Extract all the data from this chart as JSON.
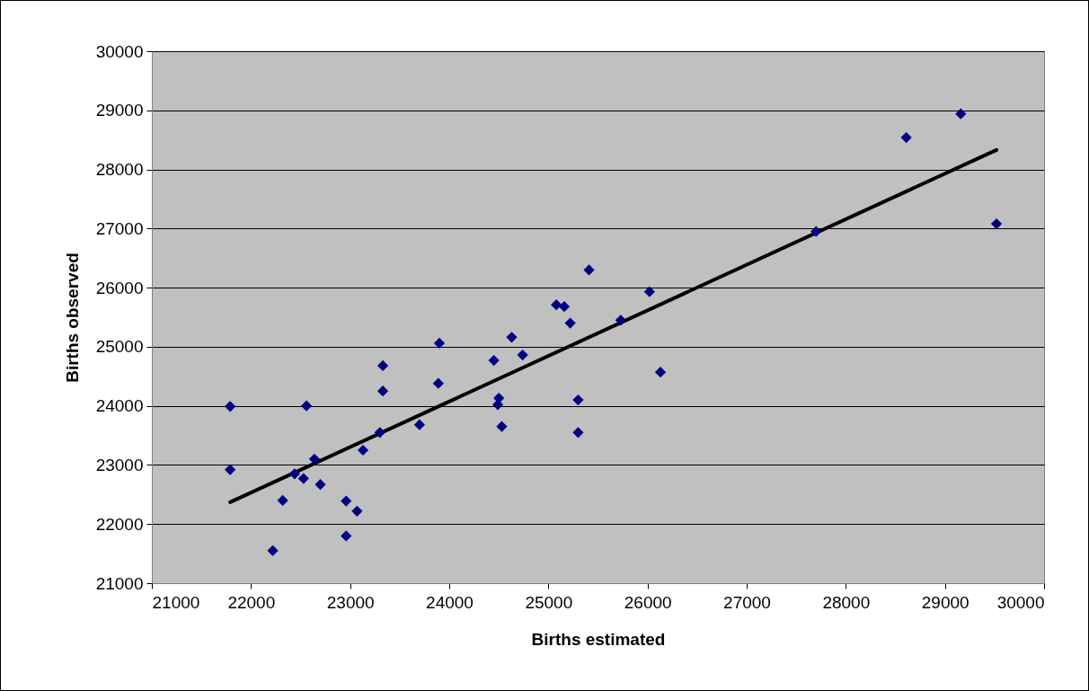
{
  "chart_data": {
    "type": "scatter",
    "xlabel": "Births estimated",
    "ylabel": "Births observed",
    "xlim": [
      21000,
      30000
    ],
    "xticks": [
      21000,
      22000,
      23000,
      24000,
      25000,
      26000,
      27000,
      28000,
      29000,
      30000
    ],
    "ylim": [
      21000,
      30000
    ],
    "yticks": [
      21000,
      22000,
      23000,
      24000,
      25000,
      26000,
      27000,
      28000,
      29000,
      30000
    ],
    "grid": "y",
    "series": [
      {
        "type": "scatter",
        "color": "#000080",
        "marker": "diamond",
        "x": [
          21790,
          21790,
          22220,
          22320,
          22440,
          22530,
          22560,
          22640,
          22700,
          22960,
          22960,
          23070,
          23130,
          23300,
          23330,
          23330,
          23700,
          23890,
          23900,
          24450,
          24500,
          24490,
          24530,
          24630,
          24740,
          25080,
          25160,
          25220,
          25300,
          25300,
          25410,
          25730,
          26020,
          26130,
          27700,
          28610,
          29160,
          29520
        ],
        "values": [
          23990,
          22920,
          21550,
          22400,
          22850,
          22770,
          24000,
          23100,
          22670,
          22390,
          21800,
          22220,
          23250,
          23550,
          24250,
          24680,
          23680,
          24380,
          25060,
          24770,
          24130,
          24020,
          23650,
          25160,
          24860,
          25710,
          25680,
          25400,
          24100,
          23550,
          26300,
          25450,
          25930,
          24570,
          26950,
          28540,
          28940,
          27080
        ]
      },
      {
        "type": "line",
        "color": "#000000",
        "x": [
          21790,
          29520
        ],
        "values": [
          22370,
          28330
        ]
      }
    ]
  }
}
